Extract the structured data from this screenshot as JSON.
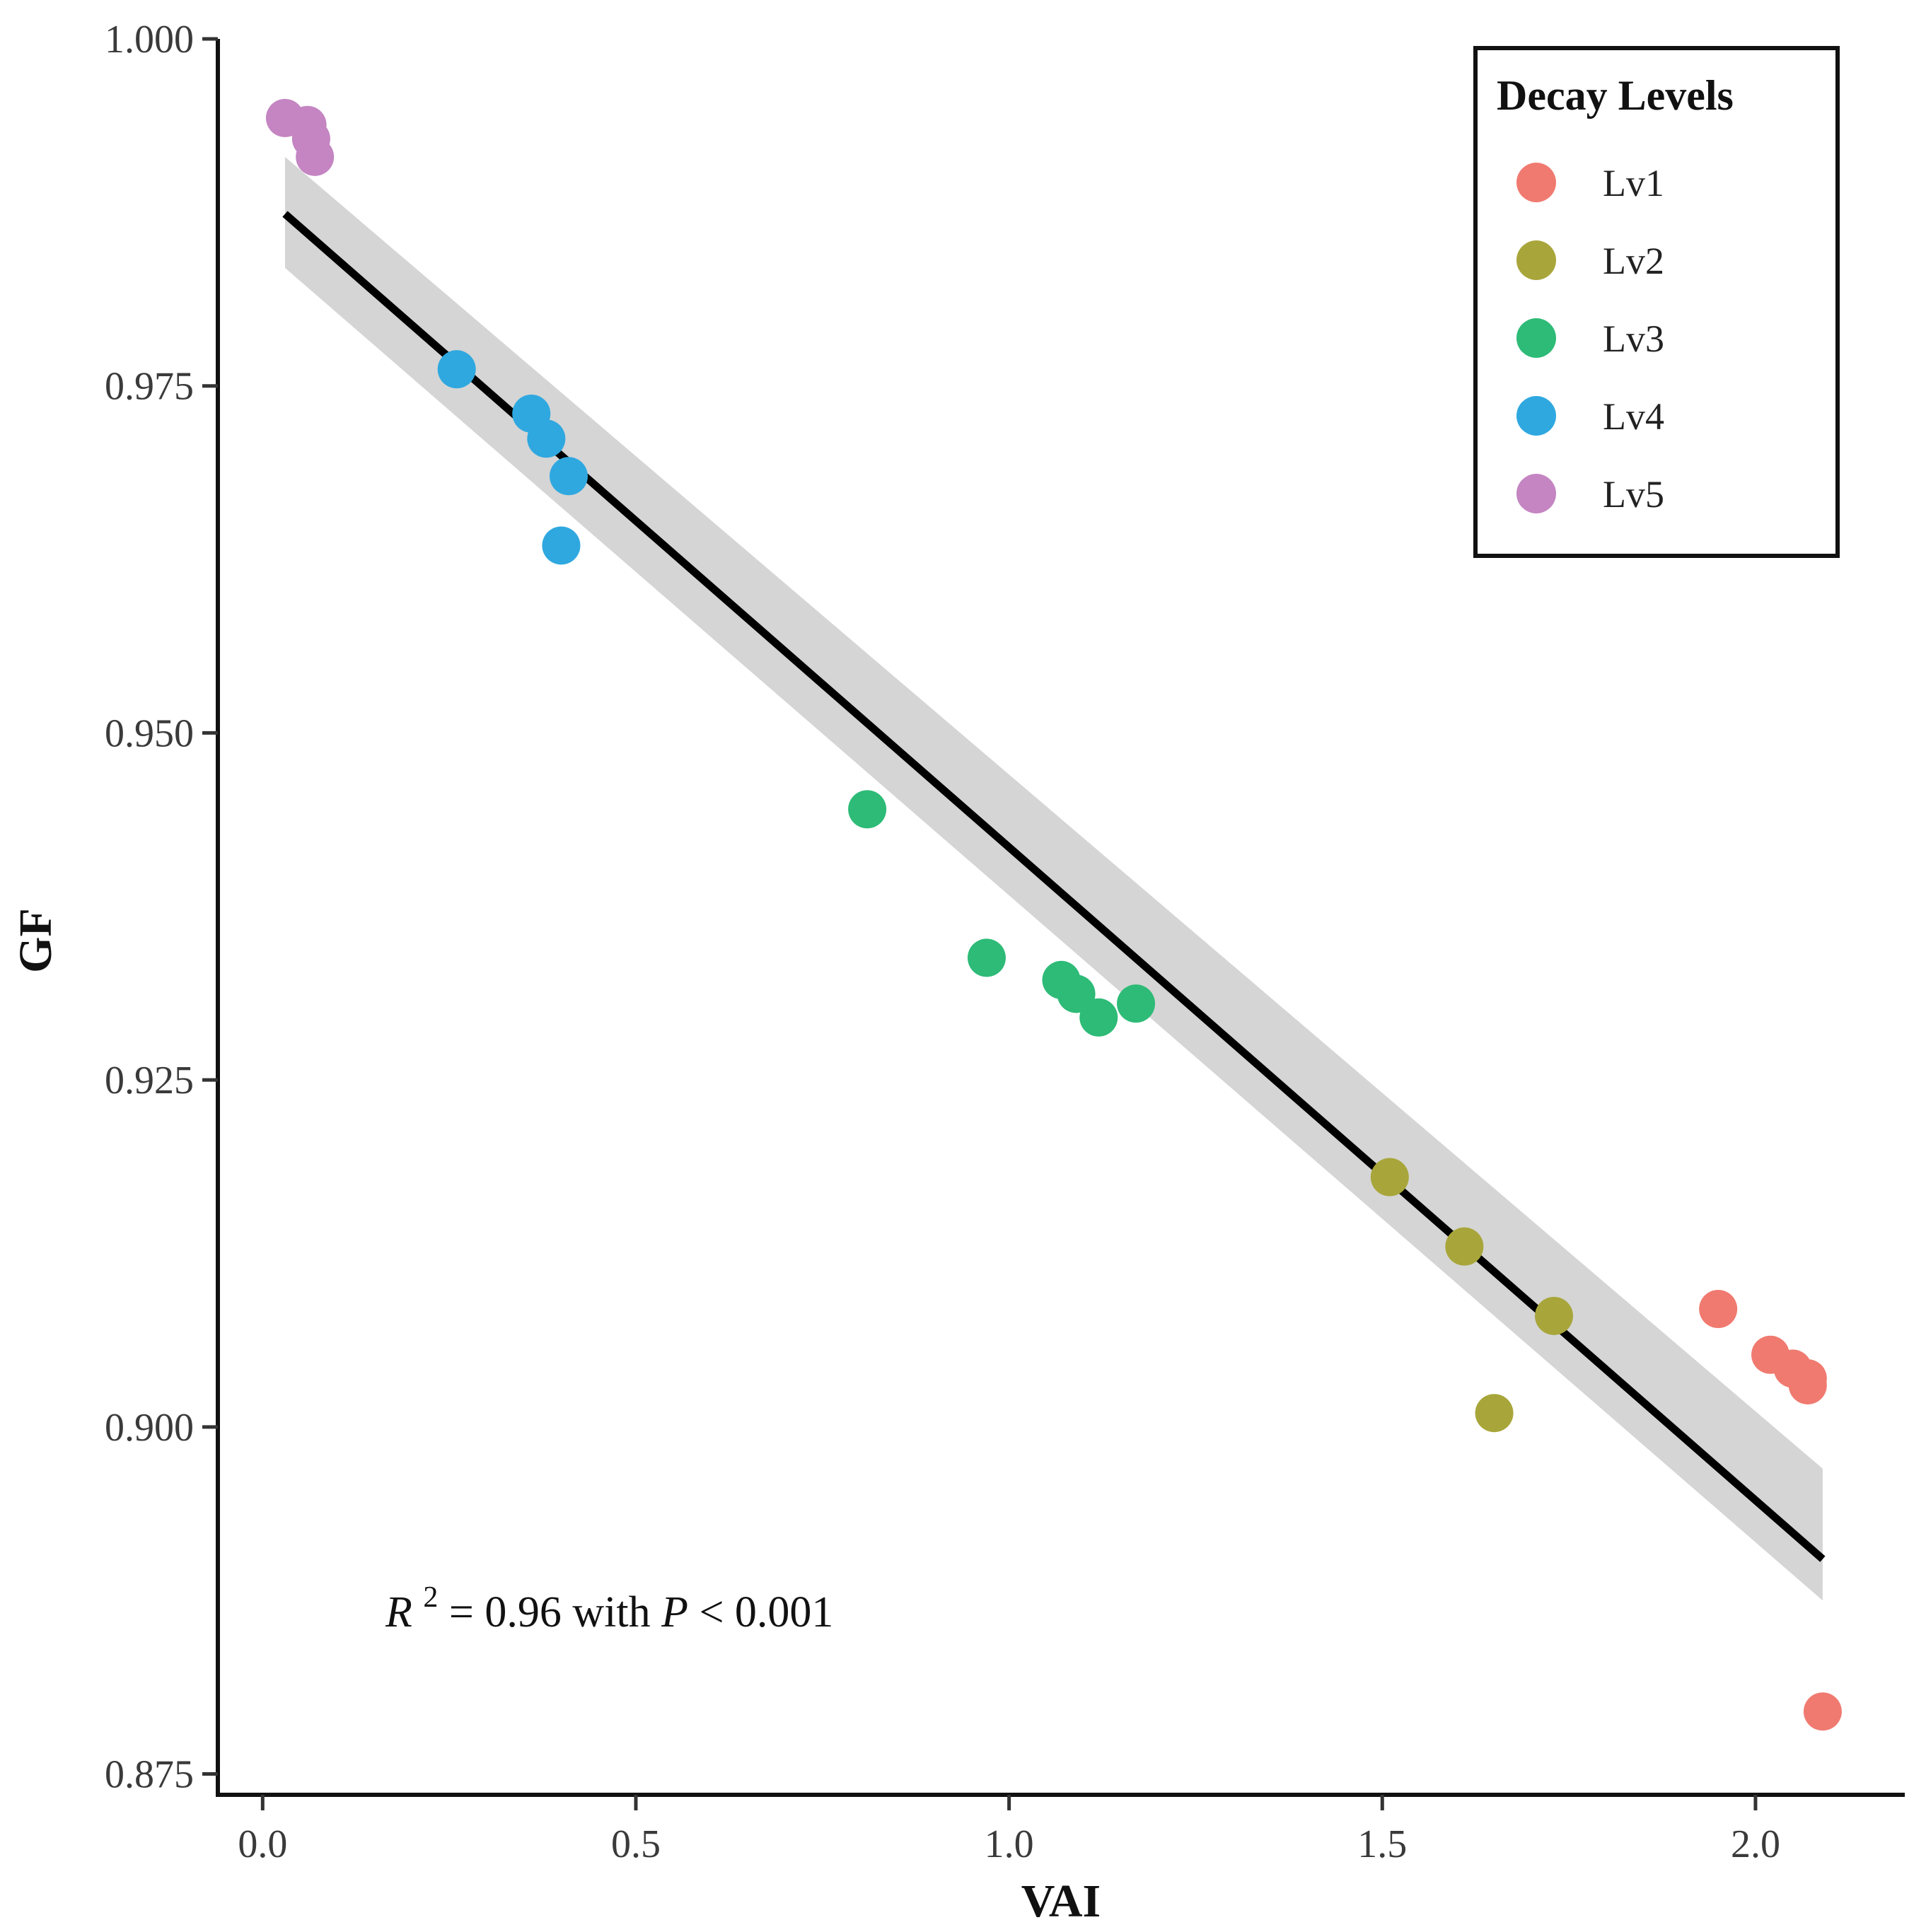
{
  "chart_data": {
    "type": "scatter",
    "xlabel": "VAI",
    "ylabel": "GF",
    "xlim": [
      -0.06,
      2.2
    ],
    "ylim": [
      0.8735,
      1.0
    ],
    "x_ticks": [
      0.0,
      0.5,
      1.0,
      1.5,
      2.0
    ],
    "x_tick_labels": [
      "0.0",
      "0.5",
      "1.0",
      "1.5",
      "2.0"
    ],
    "y_ticks": [
      0.875,
      0.9,
      0.925,
      0.95,
      0.975,
      1.0
    ],
    "y_tick_labels": [
      "0.875",
      "0.900",
      "0.925",
      "0.950",
      "0.975",
      "1.000"
    ],
    "grid": false,
    "legend": {
      "title": "Decay Levels",
      "position": "top-right",
      "entries": [
        {
          "label": "Lv1",
          "color": "#F07A70"
        },
        {
          "label": "Lv2",
          "color": "#A8A63A"
        },
        {
          "label": "Lv3",
          "color": "#2DBB77"
        },
        {
          "label": "Lv4",
          "color": "#2FA8E0"
        },
        {
          "label": "Lv5",
          "color": "#C485C2"
        }
      ]
    },
    "series": [
      {
        "name": "Lv1",
        "color": "#F07A70",
        "points": [
          [
            1.95,
            0.9085
          ],
          [
            2.02,
            0.9052
          ],
          [
            2.05,
            0.9042
          ],
          [
            2.07,
            0.9035
          ],
          [
            2.07,
            0.903
          ],
          [
            2.09,
            0.8795
          ]
        ]
      },
      {
        "name": "Lv2",
        "color": "#A8A63A",
        "points": [
          [
            1.51,
            0.918
          ],
          [
            1.61,
            0.913
          ],
          [
            1.73,
            0.908
          ],
          [
            1.65,
            0.901
          ]
        ]
      },
      {
        "name": "Lv3",
        "color": "#2DBB77",
        "points": [
          [
            0.81,
            0.9445
          ],
          [
            0.97,
            0.9338
          ],
          [
            1.07,
            0.9322
          ],
          [
            1.09,
            0.9312
          ],
          [
            1.12,
            0.9295
          ],
          [
            1.17,
            0.9305
          ]
        ]
      },
      {
        "name": "Lv4",
        "color": "#2FA8E0",
        "points": [
          [
            0.26,
            0.9762
          ],
          [
            0.36,
            0.973
          ],
          [
            0.38,
            0.9712
          ],
          [
            0.41,
            0.9685
          ],
          [
            0.4,
            0.9635
          ]
        ]
      },
      {
        "name": "Lv5",
        "color": "#C485C2",
        "points": [
          [
            0.03,
            0.9943
          ],
          [
            0.06,
            0.9938
          ],
          [
            0.065,
            0.9928
          ],
          [
            0.07,
            0.9915
          ]
        ]
      }
    ],
    "fit": {
      "x_range": [
        0.03,
        2.09
      ],
      "intercept": 0.9888,
      "slope": -0.04704,
      "ci_lower_at_ends": [
        0.9835,
        0.8875
      ],
      "ci_upper_at_ends": [
        0.9915,
        0.897
      ],
      "line_color": "#000000",
      "band_color": "#D3D3D3"
    },
    "annotation": {
      "r_symbol": "R",
      "r_exponent": "2",
      "equals_value": " = 0.96 with ",
      "p_symbol": "P",
      "p_text": " < 0.001"
    }
  }
}
